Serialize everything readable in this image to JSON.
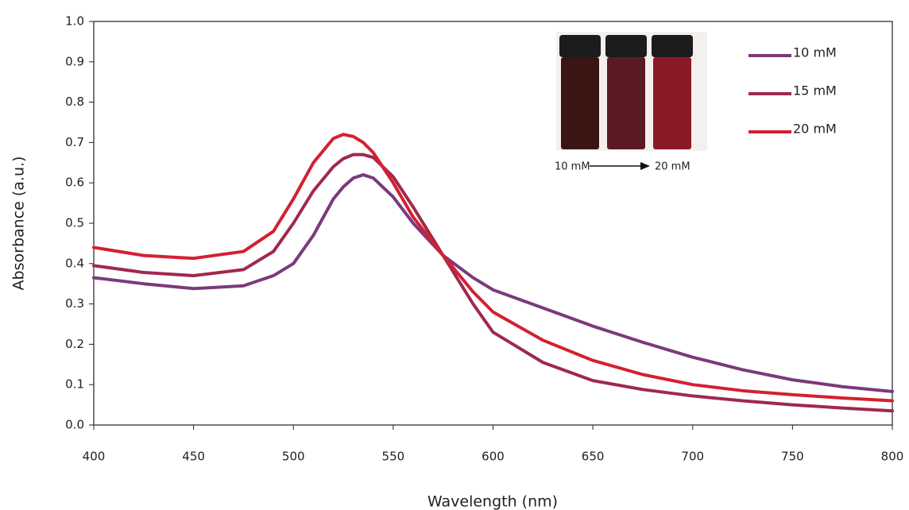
{
  "chart_data": {
    "type": "line",
    "x_label": "Wavelength (nm)",
    "y_label": "Absorbance (a.u.)",
    "x": [
      400,
      425,
      450,
      475,
      490,
      500,
      510,
      520,
      525,
      530,
      535,
      540,
      550,
      560,
      575,
      590,
      600,
      625,
      650,
      675,
      700,
      725,
      750,
      775,
      800
    ],
    "series": [
      {
        "name": "10 mM",
        "color": "#7a3a7c",
        "values": [
          0.365,
          0.35,
          0.338,
          0.345,
          0.37,
          0.4,
          0.47,
          0.56,
          0.59,
          0.612,
          0.62,
          0.612,
          0.565,
          0.5,
          0.42,
          0.365,
          0.335,
          0.29,
          0.245,
          0.205,
          0.168,
          0.137,
          0.112,
          0.095,
          0.083
        ]
      },
      {
        "name": "15 mM",
        "color": "#a0284e",
        "values": [
          0.395,
          0.378,
          0.37,
          0.385,
          0.43,
          0.5,
          0.58,
          0.64,
          0.66,
          0.67,
          0.67,
          0.663,
          0.615,
          0.54,
          0.42,
          0.3,
          0.23,
          0.155,
          0.11,
          0.088,
          0.072,
          0.06,
          0.05,
          0.042,
          0.035
        ]
      },
      {
        "name": "20 mM",
        "color": "#d42030",
        "values": [
          0.44,
          0.42,
          0.413,
          0.43,
          0.48,
          0.56,
          0.65,
          0.71,
          0.72,
          0.715,
          0.7,
          0.675,
          0.6,
          0.515,
          0.42,
          0.33,
          0.28,
          0.21,
          0.16,
          0.125,
          0.1,
          0.085,
          0.075,
          0.067,
          0.06
        ]
      }
    ],
    "xlim": [
      400,
      800
    ],
    "xticks": [
      400,
      450,
      500,
      550,
      600,
      650,
      700,
      750,
      800
    ],
    "ylim": [
      0,
      1
    ],
    "yticks": [
      {
        "value": 0,
        "label": "0.0"
      },
      0.1,
      0.2,
      0.3,
      0.4,
      0.5,
      0.6,
      0.7,
      0.8,
      0.9,
      {
        "value": 1,
        "label": "1.0"
      }
    ],
    "grid": false,
    "legend": "upper right",
    "annotations": [
      "10 mM",
      "20 mM"
    ]
  }
}
